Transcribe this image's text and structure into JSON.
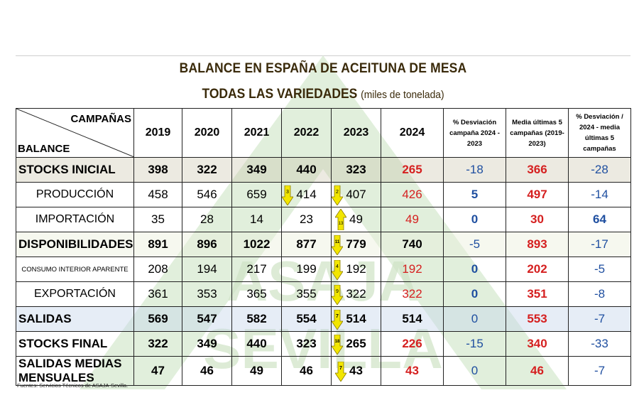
{
  "title": "BALANCE EN ESPAÑA DE ACEITUNA DE MESA",
  "subtitle": "TODAS LAS VARIEDADES",
  "unit": "(miles de tonelada)",
  "corner": {
    "top": "CAMPAÑAS",
    "bottom": "BALANCE"
  },
  "headers": {
    "years": [
      "2019",
      "2020",
      "2021",
      "2022",
      "2023",
      "2024"
    ],
    "dev1": [
      "% Desviación",
      "campaña 2024 -",
      "2023"
    ],
    "avg": [
      "Media últimas 5",
      "campañas (2019-",
      "2023)"
    ],
    "dev2": [
      "% Desviación /",
      "2024 - media",
      "últimas 5 campañas"
    ]
  },
  "rows": [
    {
      "label": "STOCKS INICIAL",
      "v": [
        "398",
        "322",
        "349",
        "440",
        "323",
        "265",
        "-18",
        "366",
        "-28"
      ]
    },
    {
      "label": "PRODUCCIÓN",
      "v": [
        "458",
        "546",
        "659",
        "414",
        "407",
        "426",
        "5",
        "497",
        "-14"
      ],
      "r2022": "3",
      "r2023": "2"
    },
    {
      "label": "IMPORTACIÓN",
      "v": [
        "35",
        "28",
        "14",
        "23",
        "49",
        "49",
        "0",
        "30",
        "64"
      ],
      "r2023": "13"
    },
    {
      "label": "DISPONIBILIDADES",
      "v": [
        "891",
        "896",
        "1022",
        "877",
        "779",
        "740",
        "-5",
        "893",
        "-17"
      ],
      "r2023": "11"
    },
    {
      "label": "CONSUMO INTERIOR APARENTE",
      "v": [
        "208",
        "194",
        "217",
        "199",
        "192",
        "192",
        "0",
        "202",
        "-5"
      ],
      "r2023": "4"
    },
    {
      "label": "EXPORTACIÓN",
      "v": [
        "361",
        "353",
        "365",
        "355",
        "322",
        "322",
        "0",
        "351",
        "-8"
      ],
      "r2023": "9"
    },
    {
      "label": "SALIDAS",
      "v": [
        "569",
        "547",
        "582",
        "554",
        "514",
        "514",
        "0",
        "553",
        "-7"
      ],
      "r2023": "7"
    },
    {
      "label": "STOCKS FINAL",
      "v": [
        "322",
        "349",
        "440",
        "323",
        "265",
        "226",
        "-15",
        "340",
        "-33"
      ],
      "r2023": "18"
    },
    {
      "label": "SALIDAS MEDIAS MENSUALES",
      "v": [
        "47",
        "46",
        "49",
        "46",
        "43",
        "43",
        "0",
        "46",
        "-7"
      ],
      "r2023": "7"
    }
  ],
  "source": "Fuentes: Servicios Técnicos de ASAJA-Sevilla.",
  "watermark": "ASAJA SEVILLA",
  "colors": {
    "red": "#d52020",
    "blue": "#1f4fa0",
    "green_wm": "#cfe3c6",
    "arrow": "#f2e600"
  }
}
